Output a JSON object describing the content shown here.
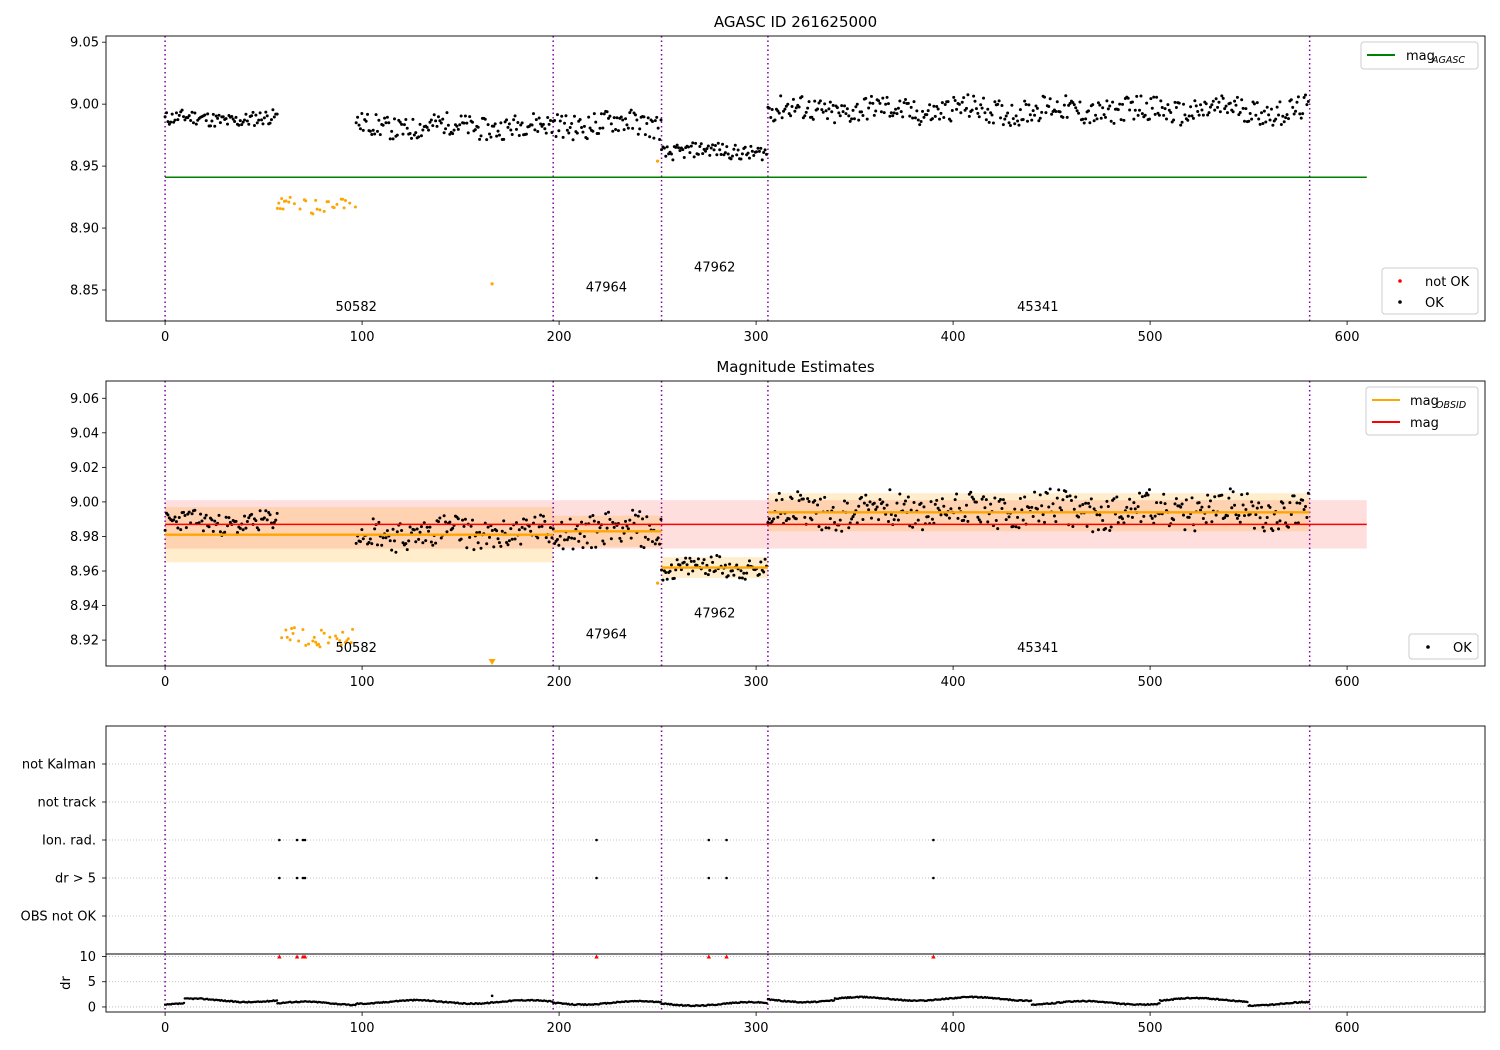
{
  "chart_data": [
    {
      "type": "scatter",
      "title": "AGASC ID 261625000",
      "xlim": [
        -30,
        670
      ],
      "ylim": [
        8.825,
        9.055
      ],
      "x_ticks": [
        0,
        100,
        200,
        300,
        400,
        500,
        600
      ],
      "y_ticks": [
        8.85,
        8.9,
        8.95,
        9.0,
        9.05
      ],
      "y_tick_labels": [
        "8.85",
        "8.90",
        "8.95",
        "9.00",
        "9.05"
      ],
      "obsid_boundaries": [
        0,
        197,
        252,
        306,
        581
      ],
      "obsid_labels": [
        {
          "text": "50582",
          "x": 97,
          "y": 8.833
        },
        {
          "text": "47964",
          "x": 224,
          "y": 8.849
        },
        {
          "text": "47962",
          "x": 279,
          "y": 8.865
        },
        {
          "text": "45341",
          "x": 443,
          "y": 8.833
        }
      ],
      "reference_lines": [
        {
          "name": "mag_AGASC",
          "y": 8.941,
          "x": [
            0,
            610
          ],
          "color": "#008000"
        }
      ],
      "segments": [
        {
          "x0": 0,
          "x1": 57,
          "mean": 8.988,
          "amp": 0.006,
          "color": "#000000"
        },
        {
          "x0": 57,
          "x1": 97,
          "mean": 8.919,
          "amp": 0.006,
          "color": "#ffa500"
        },
        {
          "x0": 97,
          "x1": 197,
          "mean": 8.982,
          "amp": 0.009,
          "color": "#000000"
        },
        {
          "x0": 197,
          "x1": 252,
          "mean": 8.984,
          "amp": 0.01,
          "color": "#000000"
        },
        {
          "x0": 252,
          "x1": 306,
          "mean": 8.962,
          "amp": 0.006,
          "color": "#000000"
        },
        {
          "x0": 306,
          "x1": 581,
          "mean": 8.995,
          "amp": 0.01,
          "color": "#000000"
        }
      ],
      "gap": [
        62,
        97
      ],
      "special_points": [
        {
          "x": 166,
          "y": 8.855,
          "color": "#ffa500"
        },
        {
          "x": 250,
          "y": 8.954,
          "color": "#ffa500"
        }
      ],
      "legend_top": [
        {
          "label": "mag",
          "sub": "AGASC",
          "color": "#008000"
        }
      ],
      "legend_bottom": [
        {
          "label": "not OK",
          "color": "#ff0000"
        },
        {
          "label": "OK",
          "color": "#000000"
        }
      ]
    },
    {
      "type": "scatter",
      "title": "Magnitude Estimates",
      "xlim": [
        -30,
        670
      ],
      "ylim": [
        8.905,
        9.07
      ],
      "x_ticks": [
        0,
        100,
        200,
        300,
        400,
        500,
        600
      ],
      "y_ticks": [
        8.92,
        8.94,
        8.96,
        8.98,
        9.0,
        9.02,
        9.04,
        9.06
      ],
      "y_tick_labels": [
        "8.92",
        "8.94",
        "8.96",
        "8.98",
        "9.00",
        "9.02",
        "9.04",
        "9.06"
      ],
      "obsid_boundaries": [
        0,
        197,
        252,
        306,
        581
      ],
      "obsid_labels": [
        {
          "text": "50582",
          "x": 97,
          "y": 8.913
        },
        {
          "text": "47964",
          "x": 224,
          "y": 8.921
        },
        {
          "text": "47962",
          "x": 279,
          "y": 8.933
        },
        {
          "text": "45341",
          "x": 443,
          "y": 8.913
        }
      ],
      "mag": {
        "y": 8.987,
        "band": [
          8.973,
          9.001
        ],
        "x": [
          0,
          610
        ],
        "color": "#ff0000"
      },
      "obsid_mags": [
        {
          "x0": 0,
          "x1": 197,
          "y": 8.981,
          "band": [
            8.965,
            8.997
          ]
        },
        {
          "x0": 197,
          "x1": 252,
          "y": 8.983,
          "band": [
            8.974,
            8.992
          ]
        },
        {
          "x0": 252,
          "x1": 306,
          "y": 8.962,
          "band": [
            8.956,
            8.968
          ]
        },
        {
          "x0": 306,
          "x1": 581,
          "y": 8.994,
          "band": [
            8.983,
            9.005
          ]
        }
      ],
      "segments": [
        {
          "x0": 0,
          "x1": 57,
          "mean": 8.988,
          "amp": 0.006,
          "color": "#000000"
        },
        {
          "x0": 57,
          "x1": 97,
          "mean": 8.922,
          "amp": 0.006,
          "color": "#ffa500"
        },
        {
          "x0": 97,
          "x1": 197,
          "mean": 8.982,
          "amp": 0.009,
          "color": "#000000"
        },
        {
          "x0": 197,
          "x1": 252,
          "mean": 8.984,
          "amp": 0.01,
          "color": "#000000"
        },
        {
          "x0": 252,
          "x1": 306,
          "mean": 8.962,
          "amp": 0.006,
          "color": "#000000"
        },
        {
          "x0": 306,
          "x1": 581,
          "mean": 8.995,
          "amp": 0.01,
          "color": "#000000"
        }
      ],
      "gap": [
        62,
        97
      ],
      "special_points": [
        {
          "x": 250,
          "y": 8.953,
          "color": "#ffa500"
        }
      ],
      "off_scale_marker": {
        "x": 166,
        "color": "#ffa500"
      },
      "legend_top": [
        {
          "label": "mag",
          "sub": "OBSID",
          "color": "#ffa500"
        },
        {
          "label": "mag",
          "sub": "",
          "color": "#ff0000"
        }
      ],
      "legend_bottom": [
        {
          "label": "OK",
          "color": "#000000"
        }
      ]
    },
    {
      "type": "scatter",
      "title": "",
      "xlim": [
        -30,
        670
      ],
      "x_ticks": [
        0,
        100,
        200,
        300,
        400,
        500,
        600
      ],
      "flag_rows": [
        "not Kalman",
        "not track",
        "Ion. rad.",
        "dr > 5",
        "OBS not OK"
      ],
      "flags": {
        "Ion. rad.": [
          58,
          67,
          70,
          71,
          219,
          276,
          285,
          390
        ],
        "dr > 5": [
          58,
          67,
          70,
          71,
          219,
          276,
          285,
          390
        ]
      },
      "obsid_boundaries": [
        0,
        197,
        252,
        306,
        581
      ],
      "dr": {
        "ylabel": "dr",
        "ylim": [
          -1,
          10.5
        ],
        "y_ticks": [
          0,
          5,
          10
        ],
        "y_tick_labels": [
          "0",
          "5",
          "10"
        ],
        "clipped_points_x": [
          58,
          67,
          70,
          71,
          219,
          276,
          285,
          390
        ],
        "clip_value": 10,
        "profile": [
          {
            "x0": 0,
            "x1": 10,
            "mean": 0.4
          },
          {
            "x0": 10,
            "x1": 57,
            "mean": 1.3
          },
          {
            "x0": 57,
            "x1": 97,
            "mean": 0.7
          },
          {
            "x0": 97,
            "x1": 197,
            "mean": 1.0
          },
          {
            "x0": 197,
            "x1": 252,
            "mean": 0.8
          },
          {
            "x0": 252,
            "x1": 306,
            "mean": 0.6
          },
          {
            "x0": 306,
            "x1": 340,
            "mean": 1.3
          },
          {
            "x0": 340,
            "x1": 440,
            "mean": 1.6
          },
          {
            "x0": 440,
            "x1": 505,
            "mean": 0.8
          },
          {
            "x0": 505,
            "x1": 550,
            "mean": 1.4
          },
          {
            "x0": 550,
            "x1": 581,
            "mean": 0.6
          }
        ],
        "extra_point": {
          "x": 166,
          "y": 2.2
        }
      }
    }
  ]
}
